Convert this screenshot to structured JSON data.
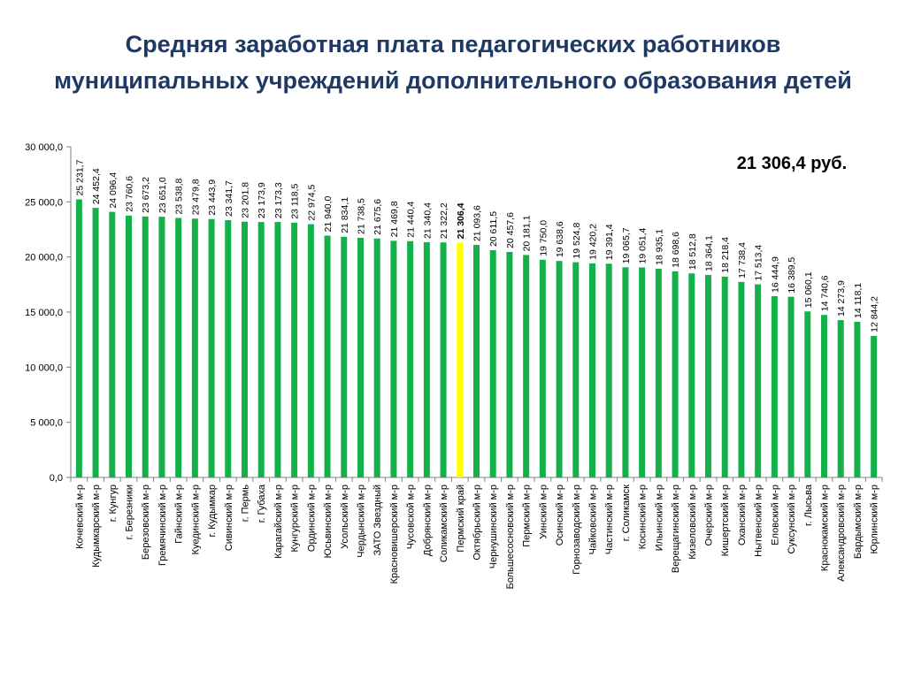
{
  "title_line1": "Средняя заработная плата педагогических работников",
  "title_line2": "муниципальных учреждений дополнительного образования детей",
  "callout": "21 306,4 руб.",
  "colors": {
    "bar": "#14B14B",
    "highlight": "#FFFF00",
    "title": "#1F3864",
    "axis": "#7F7F7F"
  },
  "chart_data": {
    "type": "bar",
    "ylim": [
      0,
      30000
    ],
    "yticks": [
      "0,0",
      "5 000,0",
      "10 000,0",
      "15 000,0",
      "20 000,0",
      "25 000,0",
      "30 000,0"
    ],
    "highlight_index": 23,
    "categories": [
      "Кочевский м-р",
      "Кудымкарский м-р",
      "г. Кунгур",
      "г. Березники",
      "Березовский м-р",
      "Гремячинский м-р",
      "Гайнский м-р",
      "Куединский м-р",
      "г. Кудымкар",
      "Сивинский м-р",
      "г. Пермь",
      "г. Губаха",
      "Карагайский м-р",
      "Кунгурский м-р",
      "Ординский м-р",
      "Юсьвинский м-р",
      "Усольский м-р",
      "Чердынский м-р",
      "ЗАТО Звездный",
      "Красновишерский м-р",
      "Чусовской м-р",
      "Добрянский м-р",
      "Соликамский м-р",
      "Пермский край",
      "Октябрьский м-р",
      "Чернушинский м-р",
      "Большесосновский м-р",
      "Пермский м-р",
      "Уинский м-р",
      "Осинский м-р",
      "Горнозаводский м-р",
      "Чайковский м-р",
      "Частинский м-р",
      "г. Соликамск",
      "Косинский м-р",
      "Ильинский м-р",
      "Верещагинский м-р",
      "Кизеловский м-р",
      "Очерский м-р",
      "Кишертский м-р",
      "Оханский м-р",
      "Нытвенский м-р",
      "Еловский м-р",
      "Суксунский м-р",
      "г. Лысьва",
      "Краснокамский м-р",
      "Александровский м-р",
      "Бардымский м-р",
      "Юрлинский м-р"
    ],
    "values": [
      25231.7,
      24452.4,
      24096.4,
      23760.6,
      23673.2,
      23651.0,
      23538.8,
      23479.8,
      23443.9,
      23341.7,
      23201.8,
      23173.9,
      23173.3,
      23118.5,
      22974.5,
      21940.0,
      21834.1,
      21738.5,
      21675.6,
      21469.8,
      21440.4,
      21340.4,
      21322.2,
      21306.4,
      21093.6,
      20611.5,
      20457.6,
      20181.1,
      19750.0,
      19638.6,
      19524.8,
      19420.2,
      19391.4,
      19065.7,
      19051.4,
      18935.1,
      18698.6,
      18512.8,
      18364.1,
      18218.4,
      17738.4,
      17513.4,
      16444.9,
      16389.5,
      15060.1,
      14740.6,
      14273.9,
      14118.1,
      12844.2
    ],
    "labels": [
      "25 231,7",
      "24 452,4",
      "24 096,4",
      "23 760,6",
      "23 673,2",
      "23 651,0",
      "23 538,8",
      "23 479,8",
      "23 443,9",
      "23 341,7",
      "23 201,8",
      "23 173,9",
      "23 173,3",
      "23 118,5",
      "22 974,5",
      "21 940,0",
      "21 834,1",
      "21 738,5",
      "21 675,6",
      "21 469,8",
      "21 440,4",
      "21 340,4",
      "21 322,2",
      "21 306,4",
      "21 093,6",
      "20 611,5",
      "20 457,6",
      "20 181,1",
      "19 750,0",
      "19 638,6",
      "19 524,8",
      "19 420,2",
      "19 391,4",
      "19 065,7",
      "19 051,4",
      "18 935,1",
      "18 698,6",
      "18 512,8",
      "18 364,1",
      "18 218,4",
      "17 738,4",
      "17 513,4",
      "16 444,9",
      "16 389,5",
      "15 060,1",
      "14 740,6",
      "14 273,9",
      "14 118,1",
      "12 844,2"
    ]
  }
}
